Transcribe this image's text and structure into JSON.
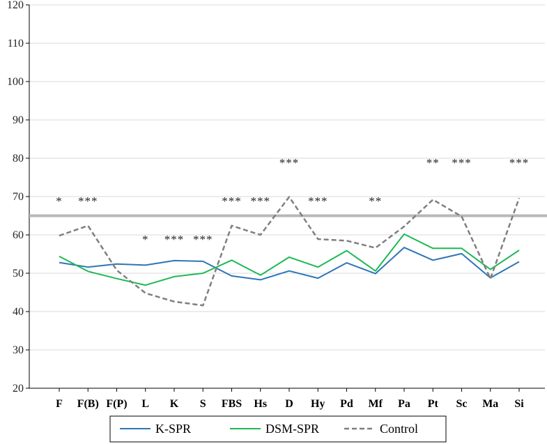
{
  "chart_data": {
    "type": "line",
    "title": "",
    "xlabel": "",
    "ylabel": "",
    "ylim": [
      20,
      120
    ],
    "yticks": [
      20,
      30,
      40,
      50,
      60,
      70,
      80,
      90,
      100,
      110,
      120
    ],
    "grid": true,
    "legend_position": "bottom",
    "categories": [
      "F",
      "F(B)",
      "F(P)",
      "L",
      "K",
      "S",
      "FBS",
      "Hs",
      "D",
      "Hy",
      "Pd",
      "Mf",
      "Pa",
      "Pt",
      "Sc",
      "Ma",
      "Si"
    ],
    "series": [
      {
        "name": "K-SPR",
        "color": "#2e75b6",
        "style": "solid",
        "values": [
          52.8,
          51.6,
          52.4,
          52.1,
          53.3,
          53.1,
          49.3,
          48.3,
          50.6,
          48.7,
          52.7,
          49.9,
          56.7,
          53.4,
          55.1,
          48.8,
          53.0
        ]
      },
      {
        "name": "DSM-SPR",
        "color": "#1db954",
        "style": "solid",
        "values": [
          54.4,
          50.5,
          48.6,
          46.9,
          49.1,
          50.0,
          53.4,
          49.5,
          54.2,
          51.6,
          55.9,
          50.6,
          60.2,
          56.5,
          56.5,
          51.0,
          56.0
        ]
      },
      {
        "name": "Control",
        "color": "#7f7f7f",
        "style": "dashed",
        "values": [
          59.8,
          62.4,
          50.8,
          44.8,
          42.6,
          41.6,
          62.4,
          60.0,
          69.9,
          58.9,
          58.5,
          56.6,
          62.2,
          69.2,
          64.8,
          48.6,
          69.6
        ]
      }
    ],
    "reference_line": {
      "value": 65,
      "color": "#b8b8b8"
    },
    "significance": [
      {
        "category": "F",
        "label": "*",
        "y": 70
      },
      {
        "category": "F(B)",
        "label": "***",
        "y": 70
      },
      {
        "category": "L",
        "label": "*",
        "y": 60
      },
      {
        "category": "K",
        "label": "***",
        "y": 60
      },
      {
        "category": "S",
        "label": "***",
        "y": 60
      },
      {
        "category": "FBS",
        "label": "***",
        "y": 70
      },
      {
        "category": "Hs",
        "label": "***",
        "y": 70
      },
      {
        "category": "D",
        "label": "***",
        "y": 80
      },
      {
        "category": "Hy",
        "label": "***",
        "y": 70
      },
      {
        "category": "Mf",
        "label": "**",
        "y": 70
      },
      {
        "category": "Pt",
        "label": "**",
        "y": 80
      },
      {
        "category": "Sc",
        "label": "***",
        "y": 80
      },
      {
        "category": "Si",
        "label": "***",
        "y": 80
      }
    ]
  }
}
